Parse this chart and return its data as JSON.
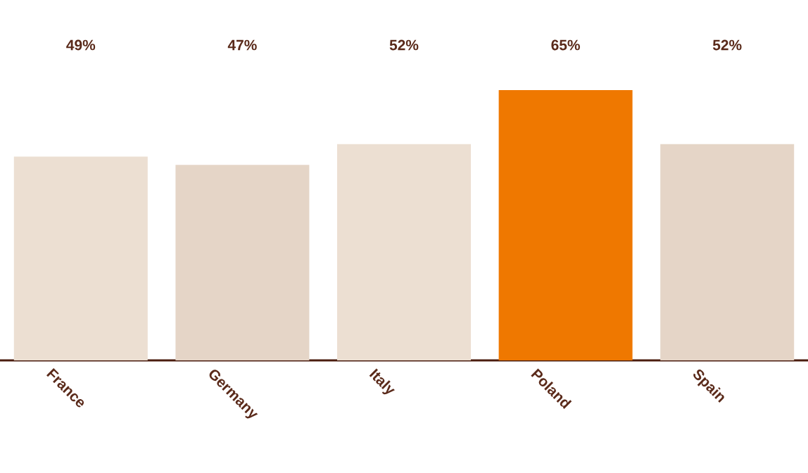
{
  "chart_data": {
    "type": "bar",
    "categories": [
      "France",
      "Germany",
      "Italy",
      "Poland",
      "Spain"
    ],
    "values": [
      49,
      47,
      52,
      65,
      52
    ],
    "value_labels": [
      "49%",
      "47%",
      "52%",
      "65%",
      "52%"
    ],
    "colors": [
      "#ecdfd2",
      "#e5d5c7",
      "#ecdfd2",
      "#ef7800",
      "#e5d5c7"
    ]
  }
}
